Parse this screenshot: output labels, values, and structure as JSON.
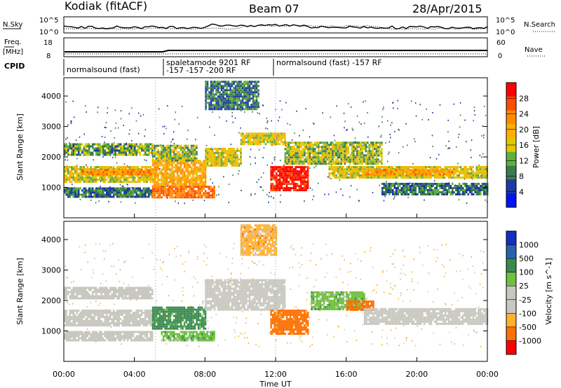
{
  "header": {
    "radar": "Kodiak (fitACF)",
    "beam": "Beam 07",
    "date": "28/Apr/2015"
  },
  "top_panels": {
    "nsky": {
      "label": "N.Sky",
      "ticks": [
        "10^5",
        "10^0"
      ]
    },
    "nsearch": {
      "label": "N.Search",
      "ticks": [
        "10^5",
        "10^0"
      ]
    },
    "freq": {
      "label1": "Freq.",
      "label2": "[MHz]",
      "ticks": [
        "18",
        "8"
      ]
    },
    "nave": {
      "label": "Nave",
      "ticks": [
        "60",
        "0"
      ]
    },
    "cpid": {
      "label": "CPID",
      "segments": [
        {
          "text": "normalsound (fast)",
          "start": 0,
          "end": 5.2
        },
        {
          "text": "spaletamode 9201 RF",
          "start": 5.2,
          "end": 12.0
        },
        {
          "text": "-157 -157 -200 RF",
          "start": 5.2,
          "end": 12.0
        },
        {
          "text": "normalsound (fast) -157 RF",
          "start": 12.0,
          "end": 24
        }
      ]
    }
  },
  "chart_data": [
    {
      "type": "heatmap",
      "name": "power",
      "ylabel": "Slant Range [km]",
      "ylim": [
        0,
        4600
      ],
      "yticks": [
        1000,
        2000,
        3000,
        4000
      ],
      "xlim": [
        0,
        24
      ],
      "colorbar": {
        "label": "Power [dB]",
        "ticks": [
          "28",
          "24",
          "20",
          "16",
          "12",
          "8",
          "4"
        ],
        "colors": [
          "#ff0000",
          "#ff4a00",
          "#ff8c00",
          "#ffb000",
          "#e0c800",
          "#60b040",
          "#3a7a50",
          "#1f3aa0",
          "#0014f0"
        ]
      },
      "regions": [
        {
          "x": [
            0,
            5
          ],
          "y": [
            1200,
            1700
          ],
          "level": 14
        },
        {
          "x": [
            0,
            5
          ],
          "y": [
            700,
            1000
          ],
          "level": 8
        },
        {
          "x": [
            0,
            5
          ],
          "y": [
            2100,
            2450
          ],
          "level": 10
        },
        {
          "x": [
            1,
            5
          ],
          "y": [
            1400,
            1600
          ],
          "level": 20
        },
        {
          "x": [
            5,
            8
          ],
          "y": [
            1050,
            1900
          ],
          "level": 18
        },
        {
          "x": [
            5,
            8.5
          ],
          "y": [
            650,
            1050
          ],
          "level": 22
        },
        {
          "x": [
            5,
            7.5
          ],
          "y": [
            1900,
            2400
          ],
          "level": 12
        },
        {
          "x": [
            8,
            10
          ],
          "y": [
            1700,
            2300
          ],
          "level": 14
        },
        {
          "x": [
            10,
            12.5
          ],
          "y": [
            2400,
            2800
          ],
          "level": 14
        },
        {
          "x": [
            11.7,
            13.8
          ],
          "y": [
            900,
            1700
          ],
          "level": 28
        },
        {
          "x": [
            12.5,
            18
          ],
          "y": [
            1800,
            2500
          ],
          "level": 12
        },
        {
          "x": [
            15,
            24
          ],
          "y": [
            1300,
            1700
          ],
          "level": 14
        },
        {
          "x": [
            17,
            22
          ],
          "y": [
            1450,
            1600
          ],
          "level": 19
        },
        {
          "x": [
            18,
            24
          ],
          "y": [
            800,
            1150
          ],
          "level": 8
        },
        {
          "x": [
            8,
            11
          ],
          "y": [
            3600,
            4500
          ],
          "level": 8
        }
      ]
    },
    {
      "type": "heatmap",
      "name": "velocity",
      "xlabel": "Time UT",
      "ylabel": "Slant Range [km]",
      "ylim": [
        0,
        4600
      ],
      "yticks": [
        1000,
        2000,
        3000,
        4000
      ],
      "xlim": [
        0,
        24
      ],
      "xticks": [
        "00:00",
        "04:00",
        "08:00",
        "12:00",
        "16:00",
        "20:00",
        "00:00"
      ],
      "colorbar": {
        "label": "Velocity [m s^-1]",
        "ticks": [
          "1000",
          "500",
          "100",
          "25",
          "-25",
          "-100",
          "-500",
          "-1000"
        ],
        "colors": [
          "#1030c0",
          "#2a60b0",
          "#3a8a50",
          "#70c040",
          "#c8c8c0",
          "#c8c8c0",
          "#ffb030",
          "#ff7000",
          "#ff0000"
        ]
      },
      "regions": [
        {
          "x": [
            0,
            5
          ],
          "y": [
            1200,
            1700
          ],
          "v": 0
        },
        {
          "x": [
            0,
            5
          ],
          "y": [
            2100,
            2450
          ],
          "v": 0
        },
        {
          "x": [
            0,
            5
          ],
          "y": [
            700,
            1000
          ],
          "v": 0
        },
        {
          "x": [
            5,
            8
          ],
          "y": [
            1100,
            1800
          ],
          "v": 200
        },
        {
          "x": [
            5.5,
            8.5
          ],
          "y": [
            700,
            1000
          ],
          "v": 100
        },
        {
          "x": [
            8,
            12.5
          ],
          "y": [
            1700,
            2700
          ],
          "v": 0
        },
        {
          "x": [
            11.7,
            13.8
          ],
          "y": [
            900,
            1700
          ],
          "v": -200
        },
        {
          "x": [
            14,
            17
          ],
          "y": [
            1700,
            2300
          ],
          "v": 100
        },
        {
          "x": [
            16,
            17.5
          ],
          "y": [
            1700,
            2000
          ],
          "v": -500
        },
        {
          "x": [
            17,
            24
          ],
          "y": [
            1250,
            1750
          ],
          "v": 0
        },
        {
          "x": [
            10,
            12
          ],
          "y": [
            3500,
            4500
          ],
          "v": -100
        }
      ]
    }
  ]
}
